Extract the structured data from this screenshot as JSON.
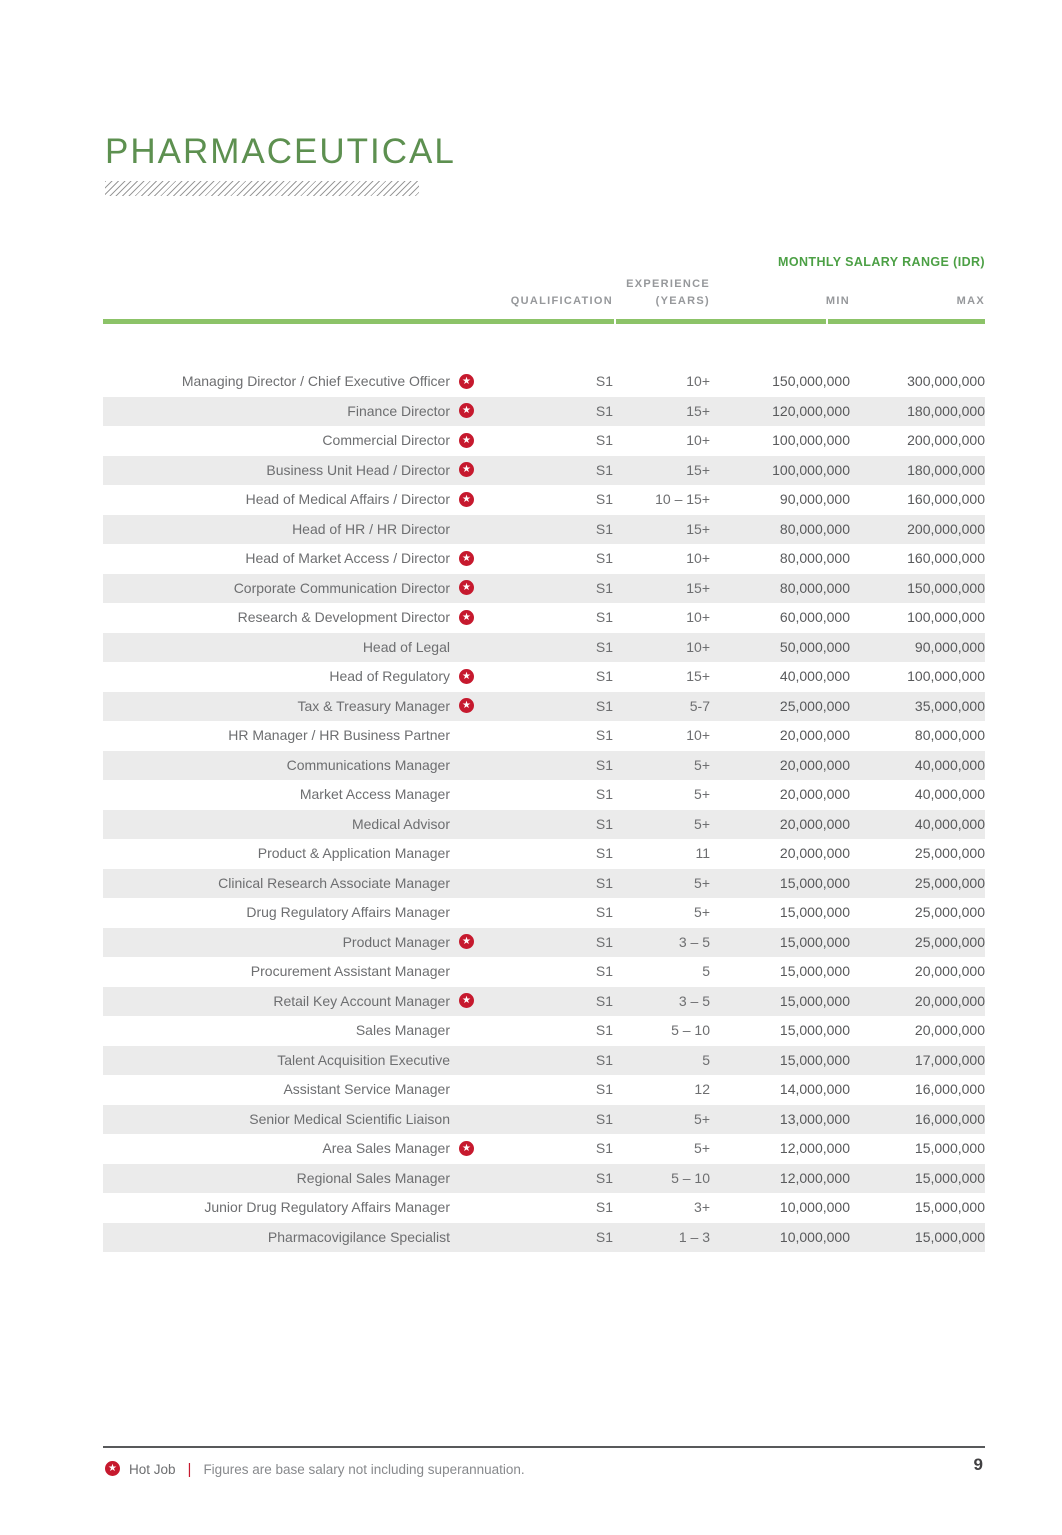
{
  "page": {
    "title": "PHARMACEUTICAL",
    "page_number": "9"
  },
  "table": {
    "salary_range_header": "MONTHLY SALARY RANGE (IDR)",
    "columns": {
      "qualification": "QUALIFICATION",
      "experience_line1": "EXPERIENCE",
      "experience_line2": "(YEARS)",
      "min": "MIN",
      "max": "MAX"
    },
    "rows": [
      {
        "role": "Managing Director / Chief Executive Officer",
        "hot_job": true,
        "qualification": "S1",
        "experience": "10+",
        "min": "150,000,000",
        "max": "300,000,000"
      },
      {
        "role": "Finance Director",
        "hot_job": true,
        "qualification": "S1",
        "experience": "15+",
        "min": "120,000,000",
        "max": "180,000,000"
      },
      {
        "role": "Commercial Director",
        "hot_job": true,
        "qualification": "S1",
        "experience": "10+",
        "min": "100,000,000",
        "max": "200,000,000"
      },
      {
        "role": "Business Unit Head / Director",
        "hot_job": true,
        "qualification": "S1",
        "experience": "15+",
        "min": "100,000,000",
        "max": "180,000,000"
      },
      {
        "role": "Head of Medical Affairs / Director",
        "hot_job": true,
        "qualification": "S1",
        "experience": "10 – 15+",
        "min": "90,000,000",
        "max": "160,000,000"
      },
      {
        "role": "Head of HR / HR Director",
        "hot_job": false,
        "qualification": "S1",
        "experience": "15+",
        "min": "80,000,000",
        "max": "200,000,000"
      },
      {
        "role": "Head of Market Access / Director",
        "hot_job": true,
        "qualification": "S1",
        "experience": "10+",
        "min": "80,000,000",
        "max": "160,000,000"
      },
      {
        "role": "Corporate Communication Director",
        "hot_job": true,
        "qualification": "S1",
        "experience": "15+",
        "min": "80,000,000",
        "max": "150,000,000"
      },
      {
        "role": "Research & Development Director",
        "hot_job": true,
        "qualification": "S1",
        "experience": "10+",
        "min": "60,000,000",
        "max": "100,000,000"
      },
      {
        "role": "Head of Legal",
        "hot_job": false,
        "qualification": "S1",
        "experience": "10+",
        "min": "50,000,000",
        "max": "90,000,000"
      },
      {
        "role": "Head of Regulatory",
        "hot_job": true,
        "qualification": "S1",
        "experience": "15+",
        "min": "40,000,000",
        "max": "100,000,000"
      },
      {
        "role": "Tax & Treasury Manager",
        "hot_job": true,
        "qualification": "S1",
        "experience": "5-7",
        "min": "25,000,000",
        "max": "35,000,000"
      },
      {
        "role": "HR Manager / HR Business Partner",
        "hot_job": false,
        "qualification": "S1",
        "experience": "10+",
        "min": "20,000,000",
        "max": "80,000,000"
      },
      {
        "role": "Communications Manager",
        "hot_job": false,
        "qualification": "S1",
        "experience": "5+",
        "min": "20,000,000",
        "max": "40,000,000"
      },
      {
        "role": "Market Access Manager",
        "hot_job": false,
        "qualification": "S1",
        "experience": "5+",
        "min": "20,000,000",
        "max": "40,000,000"
      },
      {
        "role": "Medical Advisor",
        "hot_job": false,
        "qualification": "S1",
        "experience": "5+",
        "min": "20,000,000",
        "max": "40,000,000"
      },
      {
        "role": "Product & Application Manager",
        "hot_job": false,
        "qualification": "S1",
        "experience": "11",
        "min": "20,000,000",
        "max": "25,000,000"
      },
      {
        "role": "Clinical Research Associate Manager",
        "hot_job": false,
        "qualification": "S1",
        "experience": "5+",
        "min": "15,000,000",
        "max": "25,000,000"
      },
      {
        "role": "Drug Regulatory Affairs Manager",
        "hot_job": false,
        "qualification": "S1",
        "experience": "5+",
        "min": "15,000,000",
        "max": "25,000,000"
      },
      {
        "role": "Product Manager",
        "hot_job": true,
        "qualification": "S1",
        "experience": "3 – 5",
        "min": "15,000,000",
        "max": "25,000,000"
      },
      {
        "role": "Procurement Assistant Manager",
        "hot_job": false,
        "qualification": "S1",
        "experience": "5",
        "min": "15,000,000",
        "max": "20,000,000"
      },
      {
        "role": "Retail Key Account Manager",
        "hot_job": true,
        "qualification": "S1",
        "experience": "3 – 5",
        "min": "15,000,000",
        "max": "20,000,000"
      },
      {
        "role": "Sales Manager",
        "hot_job": false,
        "qualification": "S1",
        "experience": "5 – 10",
        "min": "15,000,000",
        "max": "20,000,000"
      },
      {
        "role": "Talent Acquisition Executive",
        "hot_job": false,
        "qualification": "S1",
        "experience": "5",
        "min": "15,000,000",
        "max": "17,000,000"
      },
      {
        "role": "Assistant Service Manager",
        "hot_job": false,
        "qualification": "S1",
        "experience": "12",
        "min": "14,000,000",
        "max": "16,000,000"
      },
      {
        "role": "Senior Medical Scientific Liaison",
        "hot_job": false,
        "qualification": "S1",
        "experience": "5+",
        "min": "13,000,000",
        "max": "16,000,000"
      },
      {
        "role": "Area Sales Manager",
        "hot_job": true,
        "qualification": "S1",
        "experience": "5+",
        "min": "12,000,000",
        "max": "15,000,000"
      },
      {
        "role": "Regional Sales Manager",
        "hot_job": false,
        "qualification": "S1",
        "experience": "5 – 10",
        "min": "12,000,000",
        "max": "15,000,000"
      },
      {
        "role": "Junior Drug Regulatory Affairs Manager",
        "hot_job": false,
        "qualification": "S1",
        "experience": "3+",
        "min": "10,000,000",
        "max": "15,000,000"
      },
      {
        "role": "Pharmacovigilance Specialist",
        "hot_job": false,
        "qualification": "S1",
        "experience": "1 – 3",
        "min": "10,000,000",
        "max": "15,000,000"
      }
    ]
  },
  "footer": {
    "hot_job_label": "Hot Job",
    "divider": "|",
    "note": "Figures are base salary not including superannuation."
  },
  "colors": {
    "title_green": "#5d9050",
    "accent_green": "#4ca045",
    "line_green": "#8cc368",
    "hot_job_red": "#c6192e",
    "stripe_gray": "#ebebeb",
    "text_gray": "#6d6e70",
    "header_gray": "#96989b"
  }
}
